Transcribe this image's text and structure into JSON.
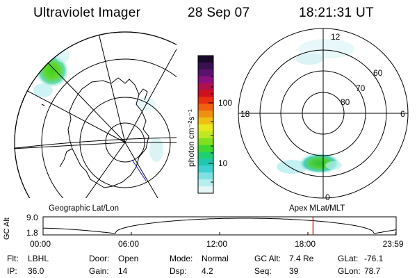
{
  "header": {
    "instrument": "Ultraviolet Imager",
    "date": "28 Sep 07",
    "time": "18:21:31 UT"
  },
  "colorbar": {
    "label": "photon cm⁻²s⁻¹",
    "ticks": [
      "100",
      "10"
    ],
    "colors": [
      "#1a0a2a",
      "#3a1050",
      "#5a1270",
      "#8a1080",
      "#b0104a",
      "#d01020",
      "#e83010",
      "#f06010",
      "#f09010",
      "#f0c010",
      "#e8e820",
      "#c0e820",
      "#80e020",
      "#40d830",
      "#20d070",
      "#20c8b0",
      "#40d0d0",
      "#80e0e0",
      "#b8eef0",
      "#e6f6f8"
    ]
  },
  "left_map": {
    "title": "Geographic Lat/Lon"
  },
  "right_map": {
    "title": "Apex  MLat/MLT",
    "mlt_labels": {
      "top": "12",
      "bottom": "0",
      "left": "18",
      "right": "6"
    },
    "lat_labels": [
      "60",
      "70",
      "80"
    ]
  },
  "timeline": {
    "ylabel": "GC Alt",
    "y_ticks": [
      "9.0",
      "1.8"
    ],
    "x_ticks": [
      "00:00",
      "06:00",
      "12:00",
      "18:00",
      "23:59"
    ],
    "current_marker_hours": 18.35,
    "marker_color": "#e00000"
  },
  "status": {
    "row1": [
      {
        "key": "Flt:",
        "value": "LBHL"
      },
      {
        "key": "Door:",
        "value": "Open"
      },
      {
        "key": "Mode:",
        "value": "Normal"
      },
      {
        "key": "GC Alt:",
        "value": "7.4 Re"
      },
      {
        "key": "GLat:",
        "value": "-76.1"
      }
    ],
    "row2": [
      {
        "key": "IP:",
        "value": "36.0"
      },
      {
        "key": "Gain:",
        "value": "14"
      },
      {
        "key": "Dsp:",
        "value": "4.2"
      },
      {
        "key": "Seq:",
        "value": "39"
      },
      {
        "key": "GLon:",
        "value": "78.7"
      }
    ]
  }
}
